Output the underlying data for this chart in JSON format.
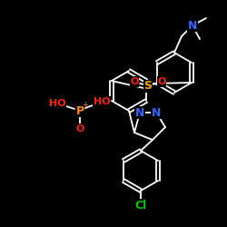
{
  "background_color": "#000000",
  "figure_size": [
    2.5,
    2.5
  ],
  "dpi": 100,
  "bond_color": "#ffffff",
  "bond_lw": 1.3,
  "atom_colors": {
    "N": "#3366ff",
    "S": "#ffaa00",
    "O": "#ff2200",
    "Cl": "#00cc00",
    "P": "#ff8800",
    "C": "#ffffff"
  }
}
